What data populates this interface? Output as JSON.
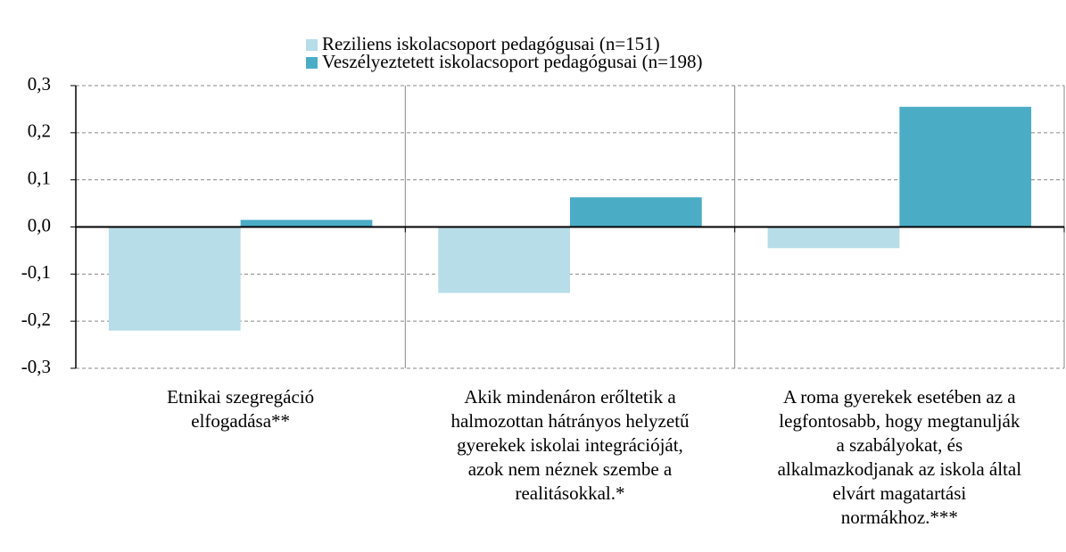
{
  "chart_data": {
    "type": "bar",
    "categories": [
      "Etnikai szegregáció\nelfogadása**",
      "Akik mindenáron erőltetik a\nhalmozottan hátrányos helyzetű\ngyerekek iskolai integrációját,\nazok nem néznek szembe a\nrealitásokkal.*",
      "A roma gyerekek esetében az a\nlegfontosabb, hogy megtanulják\na szabályokat, és\nalkalmazkodjanak az iskola által\nelvárt magatartási\nnormákhoz.***"
    ],
    "series": [
      {
        "name": "Reziliens iskolacsoport pedagógusai (n=151)",
        "color": "#b7dde8",
        "values": [
          -0.22,
          -0.14,
          -0.045
        ]
      },
      {
        "name": "Veszélyeztetett iskolacsoport pedagógusai (n=198)",
        "color": "#4bacc6",
        "values": [
          0.015,
          0.063,
          0.255
        ]
      }
    ],
    "ylim": [
      -0.3,
      0.3
    ],
    "yticks": [
      {
        "value": -0.3,
        "label": "-0,3"
      },
      {
        "value": -0.2,
        "label": "-0,2"
      },
      {
        "value": -0.1,
        "label": "-0,1"
      },
      {
        "value": 0,
        "label": "0,0"
      },
      {
        "value": 0.1,
        "label": "0,1"
      },
      {
        "value": 0.2,
        "label": "0,2"
      },
      {
        "value": 0.3,
        "label": "0,3"
      }
    ],
    "grid": true,
    "legend": "top"
  }
}
